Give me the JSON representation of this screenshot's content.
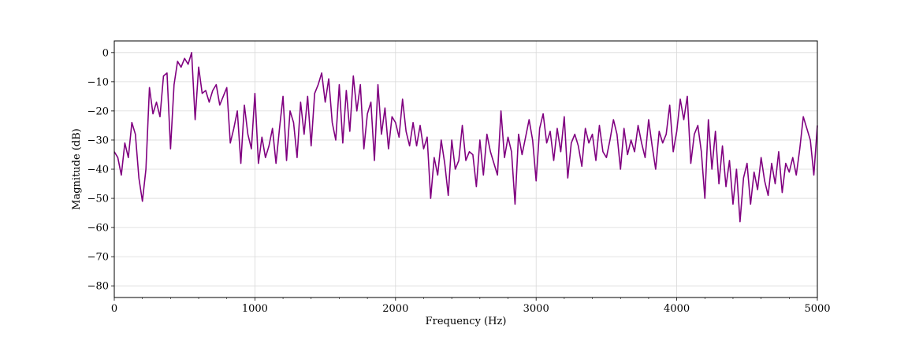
{
  "chart_data": {
    "type": "line",
    "title": "",
    "xlabel": "Frequency (Hz)",
    "ylabel": "Magnitude (dB)",
    "xlim": [
      0,
      5000
    ],
    "ylim": [
      -84,
      4
    ],
    "grid": true,
    "line_color": "#800080",
    "grid_color": "#d9d9d9",
    "x_ticks": [
      0,
      1000,
      2000,
      3000,
      4000,
      5000
    ],
    "x_tick_labels": [
      "0",
      "1000",
      "2000",
      "3000",
      "4000",
      "5000"
    ],
    "y_ticks": [
      0,
      -10,
      -20,
      -30,
      -40,
      -50,
      -60,
      -70,
      -80
    ],
    "y_tick_labels": [
      "0",
      "−10",
      "−20",
      "−30",
      "−40",
      "−50",
      "−60",
      "−70",
      "−80"
    ],
    "x_minor_step": 200,
    "series": [
      {
        "x": [
          0,
          25,
          50,
          75,
          100,
          125,
          150,
          175,
          200,
          225,
          250,
          275,
          300,
          325,
          350,
          375,
          400,
          425,
          450,
          475,
          500,
          525,
          550,
          575,
          600,
          625,
          650,
          675,
          700,
          725,
          750,
          775,
          800,
          825,
          850,
          875,
          900,
          925,
          950,
          975,
          1000,
          1025,
          1050,
          1075,
          1100,
          1125,
          1150,
          1175,
          1200,
          1225,
          1250,
          1275,
          1300,
          1325,
          1350,
          1375,
          1400,
          1425,
          1450,
          1475,
          1500,
          1525,
          1550,
          1575,
          1600,
          1625,
          1650,
          1675,
          1700,
          1725,
          1750,
          1775,
          1800,
          1825,
          1850,
          1875,
          1900,
          1925,
          1950,
          1975,
          2000,
          2025,
          2050,
          2075,
          2100,
          2125,
          2150,
          2175,
          2200,
          2225,
          2250,
          2275,
          2300,
          2325,
          2350,
          2375,
          2400,
          2425,
          2450,
          2475,
          2500,
          2525,
          2550,
          2575,
          2600,
          2625,
          2650,
          2675,
          2700,
          2725,
          2750,
          2775,
          2800,
          2825,
          2850,
          2875,
          2900,
          2925,
          2950,
          2975,
          3000,
          3025,
          3050,
          3075,
          3100,
          3125,
          3150,
          3175,
          3200,
          3225,
          3250,
          3275,
          3300,
          3325,
          3350,
          3375,
          3400,
          3425,
          3450,
          3475,
          3500,
          3525,
          3550,
          3575,
          3600,
          3625,
          3650,
          3675,
          3700,
          3725,
          3750,
          3775,
          3800,
          3825,
          3850,
          3875,
          3900,
          3925,
          3950,
          3975,
          4000,
          4025,
          4050,
          4075,
          4100,
          4125,
          4150,
          4175,
          4200,
          4225,
          4250,
          4275,
          4300,
          4325,
          4350,
          4375,
          4400,
          4425,
          4450,
          4475,
          4500,
          4525,
          4550,
          4575,
          4600,
          4625,
          4650,
          4675,
          4700,
          4725,
          4750,
          4775,
          4800,
          4825,
          4850,
          4875,
          4900,
          4925,
          4950,
          4975,
          5000
        ],
        "y": [
          -34,
          -36,
          -42,
          -31,
          -36,
          -24,
          -28,
          -43,
          -51,
          -40,
          -12,
          -21,
          -17,
          -22,
          -8,
          -7,
          -33,
          -11,
          -3,
          -5,
          -2,
          -4,
          0,
          -23,
          -5,
          -14,
          -13,
          -17,
          -13,
          -11,
          -18,
          -15,
          -12,
          -31,
          -26,
          -20,
          -38,
          -18,
          -28,
          -33,
          -14,
          -38,
          -29,
          -36,
          -32,
          -26,
          -38,
          -26,
          -15,
          -37,
          -20,
          -24,
          -36,
          -17,
          -28,
          -15,
          -32,
          -14,
          -11,
          -7,
          -17,
          -9,
          -24,
          -30,
          -11,
          -31,
          -13,
          -27,
          -8,
          -20,
          -11,
          -33,
          -21,
          -17,
          -37,
          -11,
          -28,
          -19,
          -33,
          -22,
          -24,
          -29,
          -16,
          -27,
          -32,
          -24,
          -32,
          -25,
          -33,
          -29,
          -50,
          -36,
          -42,
          -30,
          -38,
          -49,
          -30,
          -40,
          -37,
          -25,
          -37,
          -34,
          -35,
          -46,
          -30,
          -42,
          -28,
          -34,
          -38,
          -42,
          -20,
          -36,
          -29,
          -34,
          -52,
          -28,
          -35,
          -29,
          -23,
          -30,
          -44,
          -26,
          -21,
          -31,
          -27,
          -37,
          -26,
          -34,
          -22,
          -43,
          -31,
          -28,
          -32,
          -39,
          -26,
          -31,
          -28,
          -37,
          -25,
          -34,
          -36,
          -30,
          -23,
          -28,
          -40,
          -26,
          -35,
          -30,
          -34,
          -25,
          -31,
          -36,
          -23,
          -32,
          -40,
          -27,
          -31,
          -28,
          -18,
          -34,
          -27,
          -16,
          -23,
          -15,
          -38,
          -28,
          -25,
          -34,
          -50,
          -23,
          -40,
          -27,
          -45,
          -32,
          -46,
          -37,
          -52,
          -40,
          -58,
          -43,
          -38,
          -52,
          -41,
          -47,
          -36,
          -44,
          -49,
          -38,
          -45,
          -34,
          -48,
          -38,
          -41,
          -36,
          -42,
          -33,
          -22,
          -26,
          -30,
          -42,
          -25
        ]
      }
    ]
  }
}
